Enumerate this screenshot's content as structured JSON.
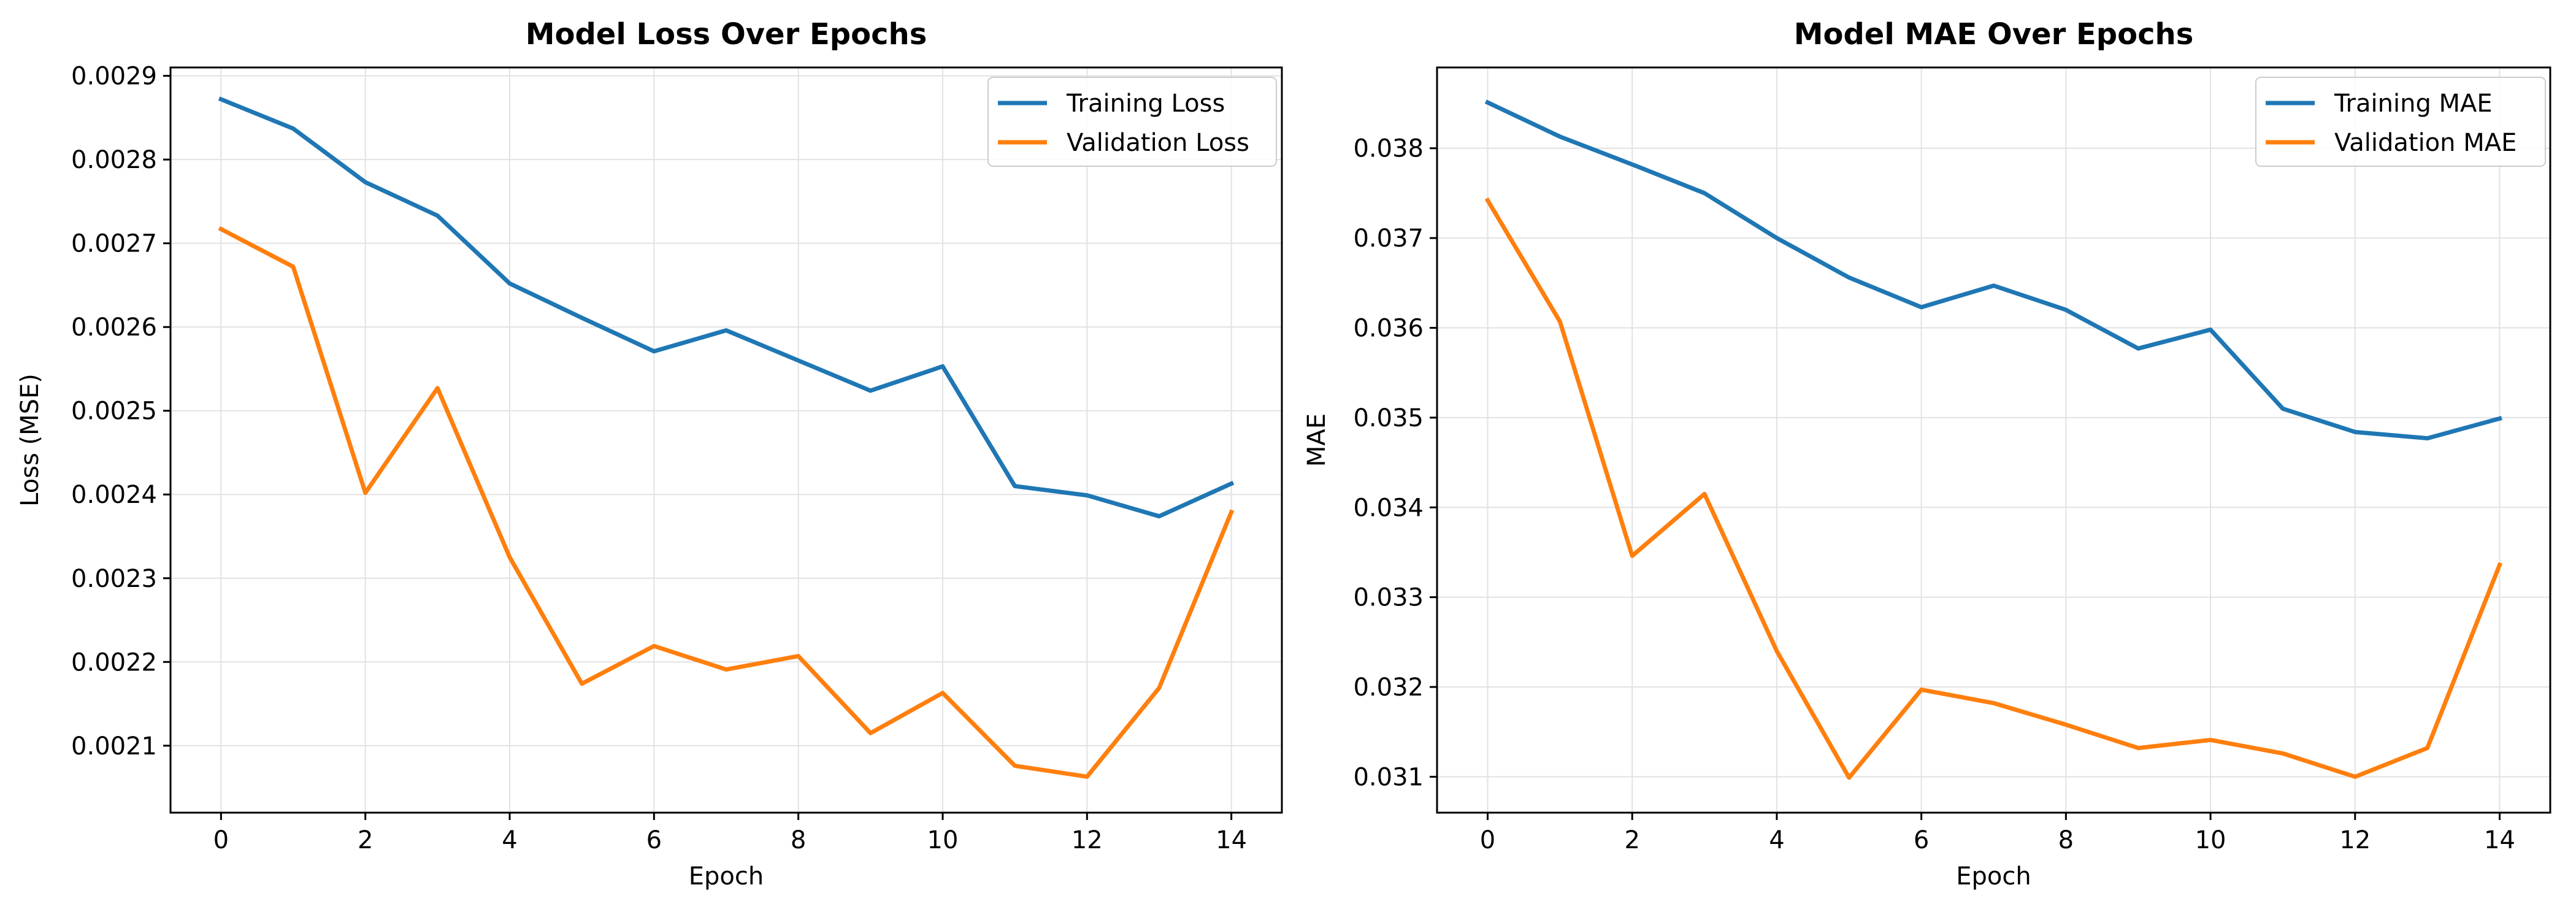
{
  "chart_data": [
    {
      "type": "line",
      "title": "Model Loss Over Epochs",
      "xlabel": "Epoch",
      "ylabel": "Loss (MSE)",
      "x": [
        0,
        1,
        2,
        3,
        4,
        5,
        6,
        7,
        8,
        9,
        10,
        11,
        12,
        13,
        14
      ],
      "xlim": [
        -0.7,
        14.7
      ],
      "ylim": [
        0.00202,
        0.00291
      ],
      "xticks": [
        0,
        2,
        4,
        6,
        8,
        10,
        12,
        14
      ],
      "yticks": [
        0.0021,
        0.0022,
        0.0023,
        0.0024,
        0.0025,
        0.0026,
        0.0027,
        0.0028,
        0.0029
      ],
      "ytick_labels": [
        "0.0021",
        "0.0022",
        "0.0023",
        "0.0024",
        "0.0025",
        "0.0026",
        "0.0027",
        "0.0028",
        "0.0029"
      ],
      "grid": true,
      "legend_position": "upper right",
      "series": [
        {
          "name": "Training Loss",
          "color": "#1f77b4",
          "values": [
            0.002872,
            0.002837,
            0.002773,
            0.002733,
            0.002652,
            0.002611,
            0.002571,
            0.002596,
            0.00256,
            0.002524,
            0.002553,
            0.00241,
            0.002399,
            0.002374,
            0.002413
          ]
        },
        {
          "name": "Validation Loss",
          "color": "#ff7f0e",
          "values": [
            0.002717,
            0.002672,
            0.002402,
            0.002527,
            0.002325,
            0.002174,
            0.002219,
            0.002191,
            0.002207,
            0.002115,
            0.002163,
            0.002076,
            0.002063,
            0.002169,
            0.002379
          ]
        }
      ]
    },
    {
      "type": "line",
      "title": "Model MAE Over Epochs",
      "xlabel": "Epoch",
      "ylabel": "MAE",
      "x": [
        0,
        1,
        2,
        3,
        4,
        5,
        6,
        7,
        8,
        9,
        10,
        11,
        12,
        13,
        14
      ],
      "xlim": [
        -0.7,
        14.7
      ],
      "ylim": [
        0.0306,
        0.0389
      ],
      "xticks": [
        0,
        2,
        4,
        6,
        8,
        10,
        12,
        14
      ],
      "yticks": [
        0.031,
        0.032,
        0.033,
        0.034,
        0.035,
        0.036,
        0.037,
        0.038
      ],
      "ytick_labels": [
        "0.031",
        "0.032",
        "0.033",
        "0.034",
        "0.035",
        "0.036",
        "0.037",
        "0.038"
      ],
      "grid": true,
      "legend_position": "upper right",
      "series": [
        {
          "name": "Training MAE",
          "color": "#1f77b4",
          "values": [
            0.03851,
            0.03813,
            0.03782,
            0.0375,
            0.037,
            0.03656,
            0.03623,
            0.03647,
            0.0362,
            0.03577,
            0.03598,
            0.0351,
            0.03484,
            0.03477,
            0.03499
          ]
        },
        {
          "name": "Validation MAE",
          "color": "#ff7f0e",
          "values": [
            0.03742,
            0.03607,
            0.03346,
            0.03415,
            0.0324,
            0.03099,
            0.03197,
            0.03182,
            0.03158,
            0.03132,
            0.03141,
            0.03126,
            0.031,
            0.03132,
            0.03336
          ]
        }
      ]
    }
  ]
}
